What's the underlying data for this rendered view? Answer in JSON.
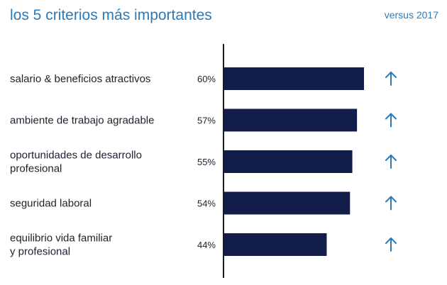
{
  "header": {
    "title": "los 5 criterios más importantes",
    "comparison_label": "versus 2017"
  },
  "colors": {
    "bar": "#131d4a",
    "accent": "#2a7ab8",
    "text": "#1f1f2e"
  },
  "chart_data": {
    "type": "bar",
    "orientation": "horizontal",
    "title": "los 5 criterios más importantes",
    "categories": [
      [
        "salario & beneficios atractivos"
      ],
      [
        "ambiente de trabajo agradable"
      ],
      [
        "oportunidades de desarrollo",
        "profesional"
      ],
      [
        "seguridad laboral"
      ],
      [
        "equilibrio vida familiar",
        "y profesional"
      ]
    ],
    "values": [
      60,
      57,
      55,
      54,
      44
    ],
    "value_labels": [
      "60%",
      "57%",
      "55%",
      "54%",
      "44%"
    ],
    "trend_vs_2017": [
      "up",
      "up",
      "up",
      "up",
      "up"
    ],
    "trend_icon": "arrow-up-icon",
    "xlim": [
      0,
      60
    ],
    "unit": "%"
  }
}
